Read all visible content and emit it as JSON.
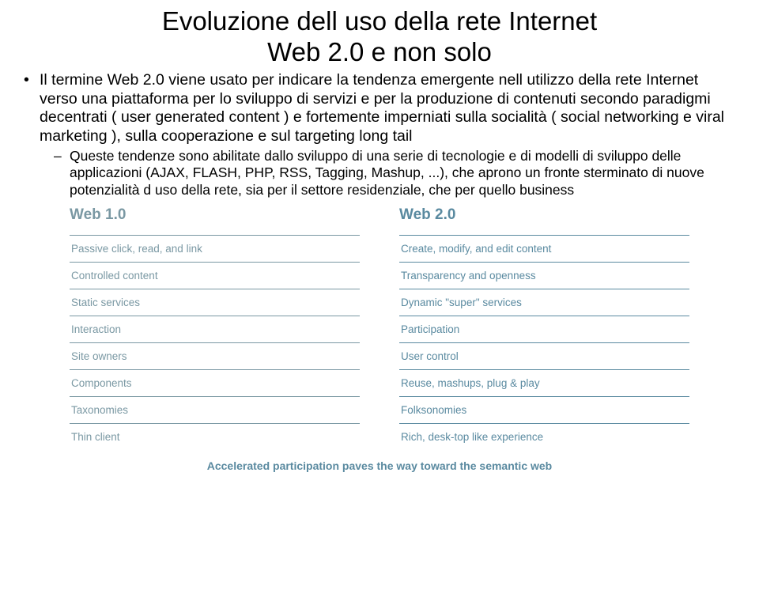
{
  "title_line1": "Evoluzione dell uso della rete Internet",
  "title_line2": "Web 2.0 e non solo",
  "bullet1": "Il termine Web 2.0 viene usato per indicare la tendenza emergente nell utilizzo della rete Internet verso una piattaforma per lo sviluppo di servizi e per la produzione di contenuti secondo paradigmi decentrati ( user generated content ) e fortemente imperniati sulla socialità ( social networking e viral marketing ), sulla cooperazione e sul targeting long tail",
  "bullet2": "Queste tendenze sono abilitate dallo sviluppo di una serie di tecnologie e di modelli di sviluppo delle applicazioni (AJAX, FLASH, PHP, RSS, Tagging, Mashup, ...), che aprono un fronte sterminato di nuove potenzialità d uso della rete, sia per il settore residenziale, che per quello business",
  "diagram": {
    "left_title": "Web 1.0",
    "right_title": "Web 2.0",
    "left": [
      "Passive click, read, and link",
      "Controlled content",
      "Static services",
      "Interaction",
      "Site owners",
      "Components",
      "Taxonomies",
      "Thin client"
    ],
    "right": [
      "Create, modify, and edit content",
      "Transparency and openness",
      "Dynamic \"super\" services",
      "Participation",
      "User control",
      "Reuse, mashups, plug & play",
      "Folksonomies",
      "Rich, desk-top like experience"
    ],
    "footer": "Accelerated participation paves the way toward the semantic web"
  }
}
